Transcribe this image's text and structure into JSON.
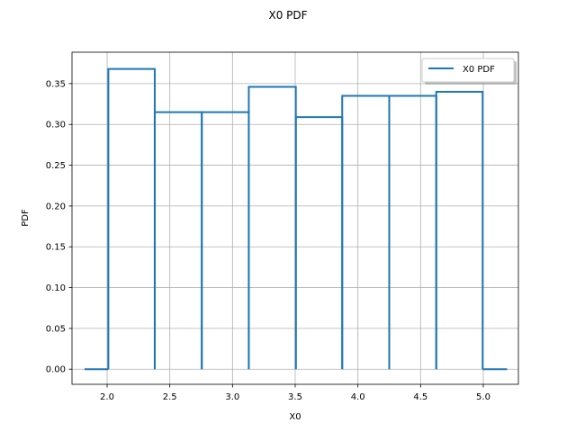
{
  "chart_data": {
    "type": "line",
    "title": "X0 PDF",
    "xlabel": "X0",
    "ylabel": "PDF",
    "xlim": [
      1.72,
      5.28
    ],
    "ylim": [
      -0.0185,
      0.3885
    ],
    "xticks": [
      2.0,
      2.5,
      3.0,
      3.5,
      4.0,
      4.5,
      5.0
    ],
    "xtick_labels": [
      "2.0",
      "2.5",
      "3.0",
      "3.5",
      "4.0",
      "4.5",
      "5.0"
    ],
    "yticks": [
      0.0,
      0.05,
      0.1,
      0.15,
      0.2,
      0.25,
      0.3,
      0.35
    ],
    "ytick_labels": [
      "0.00",
      "0.05",
      "0.10",
      "0.15",
      "0.20",
      "0.25",
      "0.30",
      "0.35"
    ],
    "grid": true,
    "legend": {
      "position": "top-right",
      "entries": [
        "X0 PDF"
      ]
    },
    "series": [
      {
        "name": "X0 PDF",
        "color": "#1f77b4",
        "bin_edges": [
          2.01,
          2.38,
          2.755,
          3.13,
          3.505,
          3.875,
          4.25,
          4.625,
          4.995
        ],
        "bin_values": [
          0.368,
          0.315,
          0.315,
          0.346,
          0.309,
          0.335,
          0.335,
          0.34
        ],
        "range_start": 1.82,
        "range_end": 5.19
      }
    ]
  }
}
